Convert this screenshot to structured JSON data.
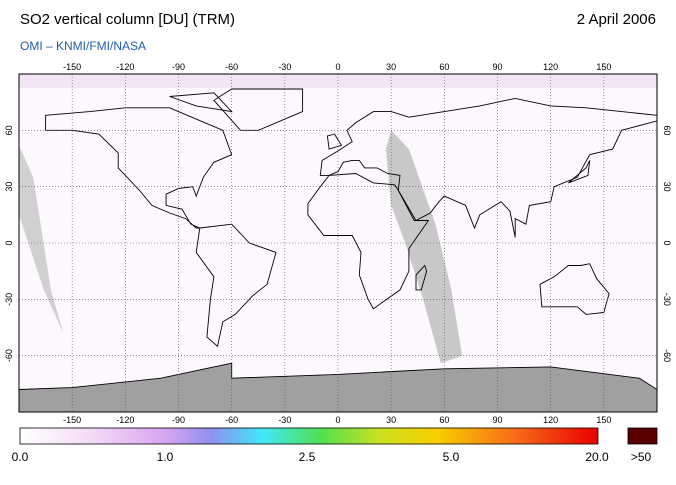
{
  "header": {
    "title": "SO2 vertical column [DU] (TRM)",
    "date": "2 April 2006",
    "source": "OMI  –  KNMI/FMI/NASA"
  },
  "map": {
    "lon_ticks": [
      -150,
      -120,
      -90,
      -60,
      -30,
      0,
      30,
      60,
      90,
      120,
      150
    ],
    "lat_ticks": [
      60,
      30,
      0,
      -30,
      -60
    ]
  },
  "colorbar": {
    "labels": [
      "0.0",
      "1.0",
      "2.5",
      "5.0",
      "20.0"
    ],
    "overflow_label": ">50"
  }
}
